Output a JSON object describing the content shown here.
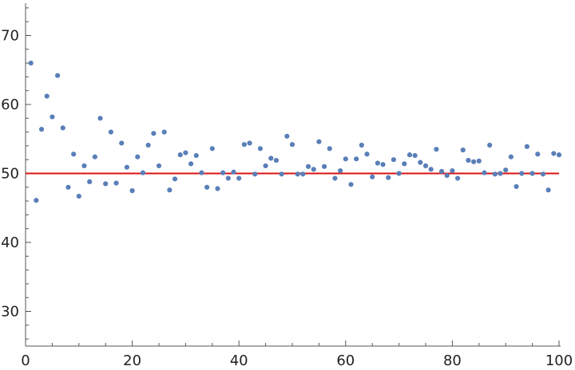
{
  "chart_data": {
    "type": "scatter",
    "title": "",
    "xlabel": "",
    "ylabel": "",
    "xlim": [
      0,
      100
    ],
    "ylim": [
      25,
      75
    ],
    "x_ticks": [
      0,
      20,
      40,
      60,
      80,
      100
    ],
    "y_ticks": [
      30,
      40,
      50,
      60,
      70
    ],
    "x_tick_labels": [
      "0",
      "20",
      "40",
      "60",
      "80",
      "100"
    ],
    "y_tick_labels": [
      "30",
      "40",
      "50",
      "60",
      "70"
    ],
    "grid": false,
    "legend": "none",
    "series": [
      {
        "point_color": "#5a7fb8",
        "x": [
          1,
          2,
          3,
          4,
          5,
          6,
          7,
          8,
          9,
          10,
          11,
          12,
          13,
          14,
          15,
          16,
          17,
          18,
          19,
          20,
          21,
          22,
          23,
          24,
          25,
          26,
          27,
          28,
          29,
          30,
          31,
          32,
          33,
          34,
          35,
          36,
          37,
          38,
          39,
          40,
          41,
          42,
          43,
          44,
          45,
          46,
          47,
          48,
          49,
          50,
          51,
          52,
          53,
          54,
          55,
          56,
          57,
          58,
          59,
          60,
          61,
          62,
          63,
          64,
          65,
          66,
          67,
          68,
          69,
          70,
          71,
          72,
          73,
          74,
          75,
          76,
          77,
          78,
          79,
          80,
          81,
          82,
          83,
          84,
          85,
          86,
          87,
          88,
          89,
          90,
          91,
          92,
          93,
          94,
          95,
          96,
          97,
          98,
          99,
          100
        ],
        "y": [
          66.0,
          46.1,
          56.4,
          61.2,
          58.2,
          64.2,
          56.6,
          48.0,
          52.8,
          46.7,
          51.1,
          48.8,
          52.4,
          58.0,
          48.5,
          56.0,
          48.6,
          54.4,
          50.9,
          47.5,
          52.4,
          50.1,
          54.1,
          55.8,
          51.1,
          56.0,
          47.6,
          49.2,
          52.7,
          53.0,
          51.4,
          52.6,
          50.1,
          48.0,
          53.6,
          47.8,
          50.1,
          49.3,
          50.2,
          49.3,
          54.2,
          54.4,
          49.9,
          53.6,
          51.1,
          52.2,
          51.9,
          49.9,
          55.4,
          54.2,
          49.9,
          49.9,
          51.0,
          50.6,
          54.6,
          51.0,
          53.6,
          49.3,
          50.4,
          52.1,
          48.4,
          52.1,
          54.1,
          52.8,
          49.5,
          51.5,
          51.3,
          49.4,
          52.0,
          50.0,
          51.4,
          52.7,
          52.6,
          51.6,
          51.1,
          50.6,
          53.5,
          50.3,
          49.7,
          50.4,
          49.3,
          53.4,
          51.9,
          51.7,
          51.8,
          50.1,
          54.1,
          49.9,
          50.0,
          50.5,
          52.4,
          48.1,
          50.0,
          53.9,
          50.0,
          52.8,
          49.9,
          47.6,
          52.9,
          52.7
        ]
      }
    ],
    "reference_line": {
      "y": 50,
      "color": "#dd1111"
    }
  }
}
